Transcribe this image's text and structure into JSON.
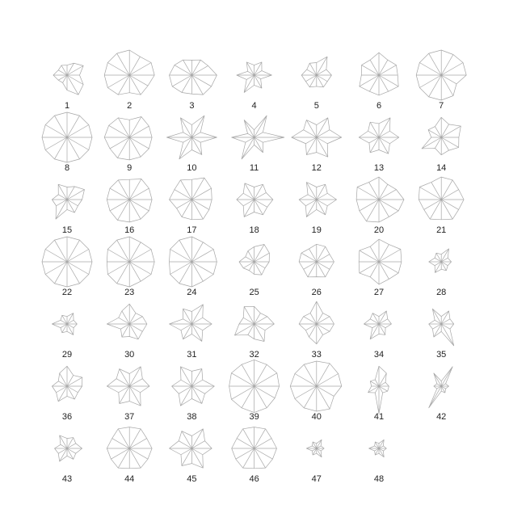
{
  "chart_data": {
    "type": "star",
    "title": "",
    "n_variables": 12,
    "grid": false,
    "colors": {
      "line": "#a6a6a6",
      "label": "#222222",
      "background": "#ffffff"
    },
    "stars": [
      {
        "label": "1",
        "values": [
          0.5,
          0.75,
          0.55,
          0.4,
          0.45,
          0.4,
          0.55,
          0.4,
          0.35,
          0.6,
          0.9,
          0.75
        ]
      },
      {
        "label": "2",
        "values": [
          1.0,
          1.0,
          0.85,
          1.0,
          1.0,
          1.0,
          1.0,
          1.0,
          0.9,
          0.7,
          0.9,
          0.85
        ]
      },
      {
        "label": "3",
        "values": [
          1.0,
          0.75,
          0.7,
          0.6,
          0.7,
          0.8,
          0.9,
          0.9,
          0.8,
          0.75,
          0.9,
          0.9
        ]
      },
      {
        "label": "4",
        "values": [
          0.7,
          0.35,
          0.6,
          0.4,
          0.6,
          0.3,
          0.7,
          0.35,
          0.8,
          0.4,
          0.6,
          0.3
        ]
      },
      {
        "label": "5",
        "values": [
          0.6,
          0.45,
          0.85,
          0.5,
          0.55,
          0.45,
          0.6,
          0.5,
          0.55,
          0.45,
          0.55,
          0.5
        ]
      },
      {
        "label": "6",
        "values": [
          0.75,
          0.8,
          0.7,
          0.9,
          0.7,
          0.8,
          0.7,
          0.9,
          0.75,
          0.8,
          0.75,
          0.9
        ]
      },
      {
        "label": "7",
        "values": [
          1.0,
          1.0,
          0.95,
          1.0,
          1.0,
          1.0,
          1.0,
          1.0,
          1.0,
          1.0,
          0.95,
          0.7
        ]
      },
      {
        "label": "8",
        "values": [
          1.0,
          1.0,
          1.0,
          1.0,
          1.0,
          1.0,
          1.0,
          1.0,
          1.0,
          1.0,
          1.0,
          1.0
        ]
      },
      {
        "label": "9",
        "values": [
          0.9,
          0.9,
          0.95,
          0.7,
          0.9,
          0.95,
          1.0,
          0.9,
          0.95,
          0.9,
          0.9,
          0.9
        ]
      },
      {
        "label": "10",
        "values": [
          1.0,
          0.4,
          1.0,
          0.5,
          0.9,
          0.4,
          1.0,
          0.4,
          1.0,
          0.5,
          0.8,
          0.4
        ]
      },
      {
        "label": "11",
        "values": [
          1.2,
          0.4,
          1.0,
          0.3,
          0.8,
          0.3,
          0.9,
          0.4,
          1.0,
          0.3,
          0.7,
          0.4
        ]
      },
      {
        "label": "12",
        "values": [
          1.0,
          0.6,
          0.9,
          0.5,
          0.8,
          0.6,
          1.0,
          0.5,
          0.8,
          0.6,
          0.9,
          0.5
        ]
      },
      {
        "label": "13",
        "values": [
          0.8,
          0.5,
          0.9,
          0.55,
          0.7,
          0.5,
          0.8,
          0.45,
          0.7,
          0.5,
          0.75,
          0.5
        ]
      },
      {
        "label": "14",
        "values": [
          0.7,
          0.9,
          0.6,
          0.8,
          0.5,
          0.6,
          0.4,
          0.9,
          0.5,
          0.7,
          0.6,
          0.8
        ]
      },
      {
        "label": "15",
        "values": [
          0.6,
          0.8,
          0.6,
          0.5,
          0.7,
          0.4,
          0.6,
          0.5,
          0.9,
          0.4,
          0.6,
          0.5
        ]
      },
      {
        "label": "16",
        "values": [
          0.9,
          0.9,
          0.95,
          0.8,
          0.9,
          0.9,
          0.9,
          0.9,
          0.95,
          0.9,
          0.9,
          0.9
        ]
      },
      {
        "label": "17",
        "values": [
          0.8,
          0.9,
          1.0,
          0.8,
          0.9,
          0.8,
          0.9,
          0.7,
          0.8,
          0.8,
          0.9,
          0.8
        ]
      },
      {
        "label": "18",
        "values": [
          0.75,
          0.55,
          0.7,
          0.5,
          0.75,
          0.5,
          0.7,
          0.5,
          0.8,
          0.5,
          0.7,
          0.6
        ]
      },
      {
        "label": "19",
        "values": [
          0.8,
          0.5,
          0.7,
          0.5,
          0.8,
          0.4,
          0.7,
          0.5,
          0.8,
          0.4,
          0.7,
          0.5
        ]
      },
      {
        "label": "20",
        "values": [
          1.0,
          0.8,
          0.7,
          0.9,
          0.8,
          1.0,
          0.9,
          0.9,
          1.0,
          0.9,
          0.8,
          0.9
        ]
      },
      {
        "label": "21",
        "values": [
          0.9,
          0.8,
          0.9,
          0.9,
          0.8,
          1.0,
          0.9,
          0.8,
          0.9,
          0.8,
          0.9,
          0.8
        ]
      },
      {
        "label": "22",
        "values": [
          1.0,
          1.0,
          1.0,
          1.0,
          1.0,
          1.0,
          1.0,
          1.0,
          1.0,
          1.0,
          1.0,
          1.0
        ]
      },
      {
        "label": "23",
        "values": [
          1.0,
          1.0,
          0.9,
          1.0,
          1.0,
          1.0,
          0.9,
          1.0,
          1.0,
          1.0,
          0.9,
          1.0
        ]
      },
      {
        "label": "24",
        "values": [
          1.0,
          1.0,
          0.9,
          1.0,
          1.0,
          1.0,
          0.9,
          1.0,
          1.0,
          1.0,
          0.9,
          1.0
        ]
      },
      {
        "label": "25",
        "values": [
          0.6,
          0.7,
          0.8,
          0.6,
          0.5,
          0.4,
          0.6,
          0.5,
          0.4,
          0.5,
          0.6,
          0.5
        ]
      },
      {
        "label": "26",
        "values": [
          0.7,
          0.6,
          0.7,
          0.7,
          0.6,
          0.7,
          0.7,
          0.6,
          0.7,
          0.6,
          0.7,
          0.6
        ]
      },
      {
        "label": "27",
        "values": [
          0.9,
          1.0,
          0.8,
          0.9,
          0.7,
          0.9,
          0.8,
          0.9,
          0.7,
          0.9,
          0.8,
          0.9
        ]
      },
      {
        "label": "28",
        "values": [
          0.4,
          0.3,
          0.6,
          0.3,
          0.4,
          0.3,
          0.5,
          0.3,
          0.5,
          0.3,
          0.4,
          0.3
        ]
      },
      {
        "label": "29",
        "values": [
          0.4,
          0.3,
          0.5,
          0.3,
          0.4,
          0.3,
          0.6,
          0.3,
          0.4,
          0.3,
          0.5,
          0.3
        ]
      },
      {
        "label": "30",
        "values": [
          0.7,
          0.6,
          0.5,
          0.8,
          0.6,
          0.5,
          0.9,
          0.4,
          0.6,
          0.5,
          0.7,
          0.6
        ]
      },
      {
        "label": "31",
        "values": [
          0.8,
          0.5,
          0.9,
          0.5,
          0.7,
          0.4,
          0.9,
          0.5,
          0.7,
          0.4,
          0.8,
          0.5
        ]
      },
      {
        "label": "32",
        "values": [
          0.8,
          0.6,
          0.5,
          0.7,
          0.8,
          0.5,
          0.6,
          0.9,
          0.5,
          0.6,
          0.8,
          0.5
        ]
      },
      {
        "label": "33",
        "values": [
          0.7,
          0.6,
          0.5,
          0.9,
          0.5,
          0.6,
          0.7,
          0.5,
          0.6,
          0.8,
          0.5,
          0.6
        ]
      },
      {
        "label": "34",
        "values": [
          0.5,
          0.4,
          0.6,
          0.3,
          0.5,
          0.4,
          0.6,
          0.3,
          0.7,
          0.4,
          0.5,
          0.3
        ]
      },
      {
        "label": "35",
        "values": [
          0.5,
          0.4,
          0.6,
          0.3,
          0.7,
          0.3,
          0.5,
          0.4,
          0.6,
          0.3,
          1.0,
          0.4
        ]
      },
      {
        "label": "36",
        "values": [
          0.6,
          0.7,
          0.5,
          0.8,
          0.6,
          0.4,
          0.6,
          0.5,
          0.7,
          0.4,
          0.6,
          0.5
        ]
      },
      {
        "label": "37",
        "values": [
          0.8,
          0.6,
          0.9,
          0.5,
          0.8,
          0.6,
          0.9,
          0.5,
          0.8,
          0.6,
          0.9,
          0.5
        ]
      },
      {
        "label": "38",
        "values": [
          0.9,
          0.5,
          0.8,
          0.6,
          0.9,
          0.5,
          0.8,
          0.6,
          0.9,
          0.5,
          0.8,
          0.6
        ]
      },
      {
        "label": "39",
        "values": [
          1.0,
          1.05,
          1.0,
          1.05,
          1.0,
          1.05,
          1.0,
          1.05,
          1.0,
          1.05,
          1.0,
          0.95
        ]
      },
      {
        "label": "40",
        "values": [
          1.0,
          1.0,
          1.05,
          1.0,
          1.0,
          1.0,
          1.05,
          1.0,
          1.0,
          1.0,
          1.05,
          0.8
        ]
      },
      {
        "label": "41",
        "values": [
          0.4,
          0.3,
          0.6,
          0.8,
          0.3,
          0.4,
          0.3,
          0.5,
          0.3,
          1.1,
          0.3,
          0.4
        ]
      },
      {
        "label": "42",
        "values": [
          0.3,
          0.2,
          0.9,
          0.2,
          0.6,
          0.2,
          0.3,
          0.2,
          1.0,
          0.2,
          0.3,
          0.2
        ]
      },
      {
        "label": "43",
        "values": [
          0.6,
          0.4,
          0.5,
          0.4,
          0.6,
          0.3,
          0.5,
          0.4,
          0.6,
          0.3,
          0.5,
          0.4
        ]
      },
      {
        "label": "44",
        "values": [
          0.9,
          0.8,
          0.9,
          0.85,
          0.9,
          0.8,
          0.9,
          0.85,
          0.9,
          0.8,
          0.9,
          0.85
        ]
      },
      {
        "label": "45",
        "values": [
          0.8,
          0.6,
          0.9,
          0.5,
          0.8,
          0.6,
          0.9,
          0.5,
          0.8,
          0.6,
          0.9,
          0.5
        ]
      },
      {
        "label": "46",
        "values": [
          0.9,
          0.8,
          0.9,
          0.85,
          0.9,
          0.8,
          0.9,
          0.85,
          0.9,
          0.8,
          0.9,
          0.85
        ]
      },
      {
        "label": "47",
        "values": [
          0.3,
          0.2,
          0.4,
          0.2,
          0.3,
          0.2,
          0.4,
          0.2,
          0.3,
          0.2,
          0.4,
          0.2
        ]
      },
      {
        "label": "48",
        "values": [
          0.3,
          0.2,
          0.4,
          0.2,
          0.3,
          0.2,
          0.4,
          0.2,
          0.3,
          0.2,
          0.4,
          0.2
        ]
      }
    ]
  }
}
